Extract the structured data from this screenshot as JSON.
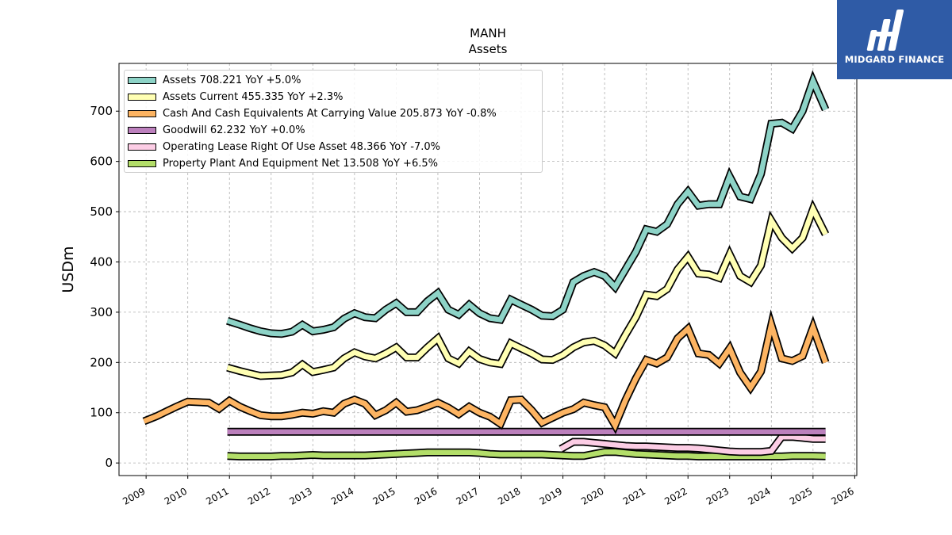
{
  "header": {
    "ticker": "MANH",
    "subtitle": "Assets"
  },
  "logo": {
    "name": "MIDGARD FINANCE",
    "icon": "midgard-logo-icon",
    "background": "#2f5ba6"
  },
  "chart_data": {
    "type": "line",
    "title": "MANH",
    "subtitle": "Assets",
    "xlabel": "",
    "ylabel": "USDm",
    "xlim": [
      2008.35,
      2026.05
    ],
    "ylim": [
      -25,
      795
    ],
    "yticks": [
      0,
      100,
      200,
      300,
      400,
      500,
      600,
      700
    ],
    "xticks": [
      "2009",
      "2010",
      "2011",
      "2012",
      "2013",
      "2014",
      "2015",
      "2016",
      "2017",
      "2018",
      "2019",
      "2020",
      "2021",
      "2022",
      "2023",
      "2024",
      "2025",
      "2026"
    ],
    "grid": true,
    "legend_position": "top-left",
    "series": [
      {
        "name": "Assets",
        "legend": "Assets  708.221 YoY +5.0%",
        "color": "#8dd3c7",
        "x": [
          2010.95,
          2011.25,
          2011.5,
          2011.75,
          2012.0,
          2012.25,
          2012.5,
          2012.75,
          2013.0,
          2013.25,
          2013.5,
          2013.75,
          2014.0,
          2014.25,
          2014.5,
          2014.75,
          2015.0,
          2015.25,
          2015.5,
          2015.75,
          2016.0,
          2016.25,
          2016.5,
          2016.75,
          2017.0,
          2017.25,
          2017.5,
          2017.75,
          2018.0,
          2018.25,
          2018.5,
          2018.75,
          2019.0,
          2019.25,
          2019.5,
          2019.75,
          2020.0,
          2020.25,
          2020.5,
          2020.75,
          2021.0,
          2021.25,
          2021.5,
          2021.75,
          2022.0,
          2022.25,
          2022.5,
          2022.75,
          2023.0,
          2023.25,
          2023.5,
          2023.75,
          2024.0,
          2024.25,
          2024.5,
          2024.75,
          2025.0,
          2025.3
        ],
        "values": [
          283,
          275,
          268,
          262,
          258,
          257,
          261,
          275,
          262,
          265,
          270,
          287,
          298,
          290,
          288,
          305,
          318,
          300,
          300,
          322,
          338,
          305,
          295,
          315,
          298,
          288,
          285,
          325,
          315,
          305,
          293,
          292,
          305,
          360,
          372,
          380,
          372,
          350,
          385,
          420,
          465,
          460,
          475,
          515,
          540,
          512,
          515,
          515,
          570,
          530,
          525,
          575,
          675,
          677,
          665,
          700,
          760,
          703
        ]
      },
      {
        "name": "Assets Current",
        "legend": "Assets Current  455.335 YoY +2.3%",
        "color": "#ffffb3",
        "x": [
          2010.95,
          2011.25,
          2011.5,
          2011.75,
          2012.0,
          2012.25,
          2012.5,
          2012.75,
          2013.0,
          2013.25,
          2013.5,
          2013.75,
          2014.0,
          2014.25,
          2014.5,
          2014.75,
          2015.0,
          2015.25,
          2015.5,
          2015.75,
          2016.0,
          2016.25,
          2016.5,
          2016.75,
          2017.0,
          2017.25,
          2017.5,
          2017.75,
          2018.0,
          2018.25,
          2018.5,
          2018.75,
          2019.0,
          2019.25,
          2019.5,
          2019.75,
          2020.0,
          2020.25,
          2020.5,
          2020.75,
          2021.0,
          2021.25,
          2021.5,
          2021.75,
          2022.0,
          2022.25,
          2022.5,
          2022.75,
          2023.0,
          2023.25,
          2023.5,
          2023.75,
          2024.0,
          2024.25,
          2024.5,
          2024.75,
          2025.0,
          2025.3
        ],
        "values": [
          190,
          183,
          178,
          173,
          174,
          175,
          180,
          196,
          181,
          185,
          190,
          208,
          220,
          212,
          208,
          218,
          230,
          210,
          210,
          230,
          248,
          208,
          198,
          222,
          207,
          200,
          197,
          238,
          228,
          218,
          206,
          205,
          215,
          230,
          240,
          243,
          234,
          218,
          255,
          290,
          335,
          332,
          346,
          385,
          410,
          377,
          375,
          368,
          415,
          372,
          360,
          393,
          482,
          448,
          427,
          448,
          505,
          455
        ]
      },
      {
        "name": "Cash And Cash Equivalents At Carrying Value",
        "legend": "Cash And Cash Equivalents At Carrying Value  205.873 YoY -0.8%",
        "color": "#fdb462",
        "x": [
          2008.95,
          2009.25,
          2009.5,
          2009.75,
          2010.0,
          2010.25,
          2010.5,
          2010.75,
          2011.0,
          2011.25,
          2011.5,
          2011.75,
          2012.0,
          2012.25,
          2012.5,
          2012.75,
          2013.0,
          2013.25,
          2013.5,
          2013.75,
          2014.0,
          2014.25,
          2014.5,
          2014.75,
          2015.0,
          2015.25,
          2015.5,
          2015.75,
          2016.0,
          2016.25,
          2016.5,
          2016.75,
          2017.0,
          2017.25,
          2017.5,
          2017.75,
          2018.0,
          2018.25,
          2018.5,
          2018.75,
          2019.0,
          2019.25,
          2019.5,
          2019.75,
          2020.0,
          2020.25,
          2020.5,
          2020.75,
          2021.0,
          2021.25,
          2021.5,
          2021.75,
          2022.0,
          2022.25,
          2022.5,
          2022.75,
          2023.0,
          2023.25,
          2023.5,
          2023.75,
          2024.0,
          2024.25,
          2024.5,
          2024.75,
          2025.0,
          2025.3
        ],
        "values": [
          83,
          93,
          103,
          113,
          122,
          121,
          120,
          108,
          124,
          112,
          103,
          95,
          93,
          93,
          96,
          100,
          98,
          103,
          100,
          118,
          126,
          118,
          95,
          105,
          120,
          102,
          105,
          112,
          120,
          110,
          97,
          112,
          100,
          92,
          78,
          125,
          126,
          105,
          80,
          90,
          100,
          107,
          120,
          115,
          111,
          75,
          125,
          168,
          205,
          198,
          210,
          248,
          267,
          218,
          215,
          198,
          228,
          180,
          150,
          182,
          275,
          208,
          203,
          213,
          270,
          200
        ]
      },
      {
        "name": "Goodwill",
        "legend": "Goodwill  62.232 YoY +0.0%",
        "color": "#bc80bd",
        "x": [
          2010.95,
          2025.3
        ],
        "values": [
          62.2,
          62.2
        ]
      },
      {
        "name": "Operating Lease Right Of Use Asset",
        "legend": "Operating Lease Right Of Use Asset  48.366 YoY -7.0%",
        "color": "#fccde5",
        "x": [
          2018.95,
          2019.25,
          2019.5,
          2019.75,
          2020.0,
          2020.25,
          2020.5,
          2020.75,
          2021.0,
          2021.25,
          2021.5,
          2021.75,
          2022.0,
          2022.25,
          2022.5,
          2022.75,
          2023.0,
          2023.25,
          2023.5,
          2023.75,
          2024.0,
          2024.25,
          2024.5,
          2024.75,
          2025.0,
          2025.3
        ],
        "values": [
          28,
          42,
          42,
          40,
          38,
          36,
          34,
          33,
          33,
          32,
          31,
          30,
          30,
          29,
          27,
          25,
          23,
          22,
          22,
          22,
          24,
          52,
          52,
          50,
          48,
          48
        ]
      },
      {
        "name": "Property Plant And Equipment Net",
        "legend": "Property Plant And Equipment Net  13.508 YoY +6.5%",
        "color": "#b3de69",
        "x": [
          2010.95,
          2011.25,
          2011.5,
          2011.75,
          2012.0,
          2012.25,
          2012.5,
          2012.75,
          2013.0,
          2013.25,
          2013.5,
          2013.75,
          2014.0,
          2014.25,
          2014.5,
          2014.75,
          2015.0,
          2015.25,
          2015.5,
          2015.75,
          2016.0,
          2016.25,
          2016.5,
          2016.75,
          2017.0,
          2017.25,
          2017.5,
          2017.75,
          2018.0,
          2018.25,
          2018.5,
          2018.75,
          2019.0,
          2019.25,
          2019.5,
          2019.75,
          2020.0,
          2020.25,
          2020.5,
          2020.75,
          2021.0,
          2021.25,
          2021.5,
          2021.75,
          2022.0,
          2022.25,
          2022.5,
          2022.75,
          2023.0,
          2023.25,
          2023.5,
          2023.75,
          2024.0,
          2024.25,
          2024.5,
          2024.75,
          2025.0,
          2025.3
        ],
        "values": [
          14,
          13,
          13,
          13,
          13,
          14,
          14,
          15,
          16,
          15,
          15,
          15,
          15,
          15,
          16,
          17,
          18,
          19,
          20,
          21,
          21,
          21,
          21,
          21,
          20,
          18,
          17,
          17,
          17,
          17,
          17,
          16,
          15,
          14,
          14,
          18,
          22,
          22,
          20,
          18,
          17,
          16,
          15,
          14,
          14,
          13,
          13,
          13,
          13,
          13,
          13,
          13,
          13,
          13,
          14,
          14,
          14,
          13.5
        ]
      }
    ]
  }
}
